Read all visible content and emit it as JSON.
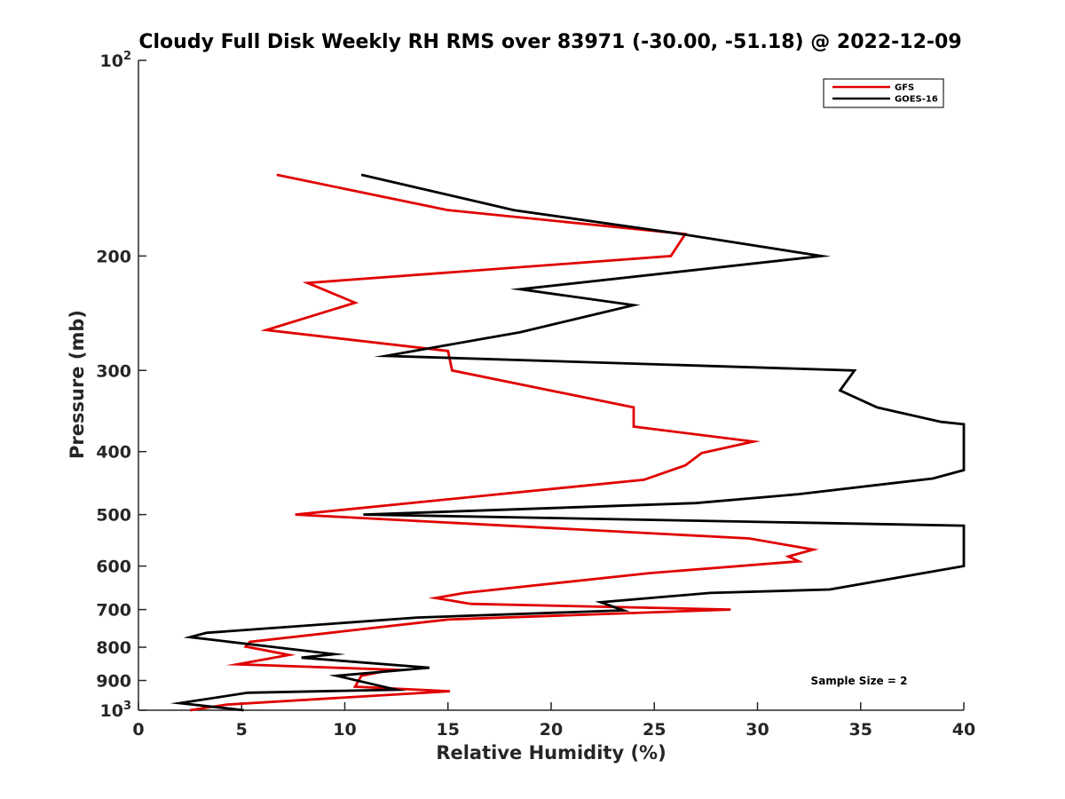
{
  "chart_data": {
    "type": "line",
    "title": "Cloudy Full Disk Weekly RH RMS over 83971 (-30.00, -51.18) @ 2022-12-09",
    "xlabel": "Relative Humidity (%)",
    "ylabel": "Pressure (mb)",
    "xlim": [
      0,
      40
    ],
    "ylim": [
      100,
      1000
    ],
    "yscale": "log",
    "y_reversed": true,
    "grid": false,
    "legend_position": "top-right",
    "x_ticks": [
      0,
      5,
      10,
      15,
      20,
      25,
      30,
      35,
      40
    ],
    "y_ticks": [
      {
        "value": 100,
        "base": "10",
        "exp": "2"
      },
      {
        "value": 200,
        "label": "200"
      },
      {
        "value": 300,
        "label": "300"
      },
      {
        "value": 400,
        "label": "400"
      },
      {
        "value": 500,
        "label": "500"
      },
      {
        "value": 600,
        "label": "600"
      },
      {
        "value": 700,
        "label": "700"
      },
      {
        "value": 800,
        "label": "800"
      },
      {
        "value": 900,
        "label": "900"
      },
      {
        "value": 1000,
        "base": "10",
        "exp": "3"
      }
    ],
    "annotation": "Sample Size = 2",
    "series": [
      {
        "name": "GFS",
        "color": "#e00000",
        "points": [
          [
            6.7,
            150
          ],
          [
            15.0,
            170
          ],
          [
            26.5,
            185
          ],
          [
            25.8,
            200
          ],
          [
            8.2,
            220
          ],
          [
            10.5,
            236
          ],
          [
            6.2,
            260
          ],
          [
            15.0,
            280
          ],
          [
            15.2,
            300
          ],
          [
            24.0,
            342
          ],
          [
            24.0,
            366
          ],
          [
            29.8,
            386
          ],
          [
            27.3,
            402
          ],
          [
            26.5,
            420
          ],
          [
            24.5,
            442
          ],
          [
            7.6,
            500
          ],
          [
            29.6,
            544
          ],
          [
            32.7,
            566
          ],
          [
            31.5,
            580
          ],
          [
            32.0,
            590
          ],
          [
            24.8,
            615
          ],
          [
            15.8,
            660
          ],
          [
            14.4,
            672
          ],
          [
            16.1,
            686
          ],
          [
            28.7,
            700
          ],
          [
            15.0,
            725
          ],
          [
            5.4,
            785
          ],
          [
            5.2,
            798
          ],
          [
            7.3,
            822
          ],
          [
            4.8,
            850
          ],
          [
            12.3,
            866
          ],
          [
            10.8,
            885
          ],
          [
            10.5,
            920
          ],
          [
            15.1,
            935
          ],
          [
            4.3,
            980
          ],
          [
            2.5,
            1000
          ]
        ]
      },
      {
        "name": "GOES-16",
        "color": "#000000",
        "points": [
          [
            10.8,
            150
          ],
          [
            18.2,
            170
          ],
          [
            26.3,
            185
          ],
          [
            33.1,
            200
          ],
          [
            18.5,
            225
          ],
          [
            24.0,
            238
          ],
          [
            18.5,
            262
          ],
          [
            12.0,
            285
          ],
          [
            34.7,
            300
          ],
          [
            34.0,
            322
          ],
          [
            35.8,
            342
          ],
          [
            38.9,
            360
          ],
          [
            40.0,
            363
          ],
          [
            40.0,
            427
          ],
          [
            38.5,
            440
          ],
          [
            32.0,
            465
          ],
          [
            27.0,
            480
          ],
          [
            10.9,
            500
          ],
          [
            40.0,
            520
          ],
          [
            40.0,
            600
          ],
          [
            33.5,
            652
          ],
          [
            27.7,
            660
          ],
          [
            22.4,
            682
          ],
          [
            23.5,
            702
          ],
          [
            13.5,
            720
          ],
          [
            3.3,
            760
          ],
          [
            2.5,
            772
          ],
          [
            9.5,
            820
          ],
          [
            7.9,
            830
          ],
          [
            14.1,
            860
          ],
          [
            9.6,
            885
          ],
          [
            12.5,
            930
          ],
          [
            5.3,
            940
          ],
          [
            2.0,
            975
          ],
          [
            5.1,
            1000
          ]
        ]
      }
    ]
  }
}
